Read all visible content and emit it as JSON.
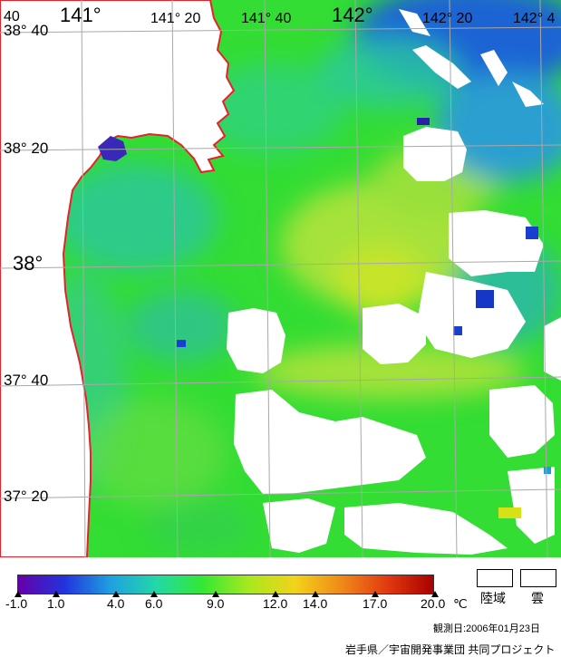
{
  "map": {
    "lat_labels": [
      "38° 40",
      "38° 20",
      "38°",
      "37° 40",
      "37° 20"
    ],
    "lon_labels": [
      "40",
      "141°",
      "141° 20",
      "141° 40",
      "142°",
      "142° 20",
      "142° 4"
    ],
    "colors": {
      "land": "#ffffff",
      "coastline": "#e8202a",
      "graticule": "#a8a8a8",
      "cloud": "#ffffff",
      "water_green": "#33dd33",
      "water_yellowgreen": "#9fe23a",
      "water_cyan": "#2bc3b0",
      "water_blue": "#1b60d8"
    }
  },
  "legend": {
    "colorbar_stops": [
      "#6600aa",
      "#2233dd",
      "#1fa0e0",
      "#22d8a8",
      "#33e833",
      "#a8e81e",
      "#f2d31a",
      "#f08a18",
      "#e23a10",
      "#aa0000"
    ],
    "ticks": [
      "-1.0",
      "1.0",
      "4.0",
      "6.0",
      "9.0",
      "12.0",
      "14.0",
      "17.0",
      "20.0"
    ],
    "unit": "℃",
    "land_label": "陸域",
    "cloud_label": "雲"
  },
  "observation_date": "観測日:2006年01月23日",
  "credit": "岩手県／宇宙開発事業団 共同プロジェクト"
}
